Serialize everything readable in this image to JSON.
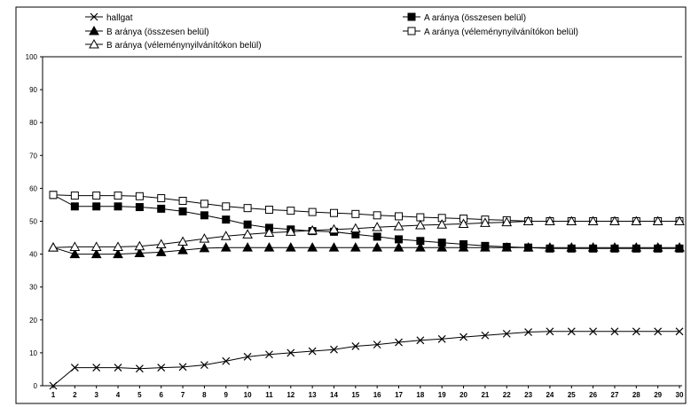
{
  "chart_data": {
    "type": "line",
    "title": "",
    "xlabel": "",
    "ylabel": "",
    "x": [
      1,
      2,
      3,
      4,
      5,
      6,
      7,
      8,
      9,
      10,
      11,
      12,
      13,
      14,
      15,
      16,
      17,
      18,
      19,
      20,
      21,
      22,
      23,
      24,
      25,
      26,
      27,
      28,
      29,
      30
    ],
    "ylim": [
      0,
      100
    ],
    "yticks": [
      0,
      10,
      20,
      30,
      40,
      50,
      60,
      70,
      80,
      90,
      100
    ],
    "grid": false,
    "legend_position": "top",
    "series": [
      {
        "name": "hallgat",
        "marker": "x",
        "values": [
          0,
          5.5,
          5.5,
          5.5,
          5.2,
          5.5,
          5.7,
          6.3,
          7.5,
          8.8,
          9.5,
          10.0,
          10.5,
          11.0,
          12.0,
          12.5,
          13.2,
          13.8,
          14.2,
          14.8,
          15.3,
          15.8,
          16.3,
          16.5,
          16.5,
          16.5,
          16.5,
          16.5,
          16.5,
          16.5
        ]
      },
      {
        "name": "A aránya (összesen belül)",
        "marker": "filled-square",
        "values": [
          58,
          54.5,
          54.5,
          54.5,
          54.3,
          53.8,
          53.0,
          51.8,
          50.5,
          49.0,
          48.0,
          47.5,
          47.0,
          46.8,
          46.0,
          45.3,
          44.5,
          44.0,
          43.5,
          43.0,
          42.5,
          42.2,
          42.0,
          41.7,
          41.7,
          41.7,
          41.7,
          41.7,
          41.7,
          41.7
        ]
      },
      {
        "name": "B aránya (összesen belül)",
        "marker": "filled-triangle",
        "values": [
          42,
          40,
          40,
          40,
          40.3,
          40.6,
          41.2,
          41.8,
          42,
          42,
          42,
          42,
          42,
          42,
          42,
          42,
          42,
          42,
          42,
          42,
          42,
          42,
          42,
          42,
          42,
          42,
          42,
          42,
          42,
          42
        ]
      },
      {
        "name": "A aránya (véleménynyilvánítókon belül)",
        "marker": "open-square",
        "values": [
          58,
          57.8,
          57.8,
          57.8,
          57.6,
          57.0,
          56.2,
          55.3,
          54.5,
          54.0,
          53.5,
          53.2,
          52.8,
          52.5,
          52.2,
          51.8,
          51.5,
          51.2,
          51.0,
          50.8,
          50.5,
          50.3,
          50.0,
          50.0,
          50.0,
          50.0,
          50.0,
          50.0,
          50.0,
          50.0
        ]
      },
      {
        "name": "B aránya (véleménynyilvánítókon belül)",
        "marker": "open-triangle",
        "values": [
          42,
          42.2,
          42.2,
          42.2,
          42.4,
          43.0,
          43.8,
          44.7,
          45.5,
          46.0,
          46.5,
          46.8,
          47.2,
          47.5,
          47.8,
          48.2,
          48.5,
          48.8,
          49.0,
          49.2,
          49.5,
          49.7,
          50.0,
          50.0,
          50.0,
          50.0,
          50.0,
          50.0,
          50.0,
          50.0
        ]
      }
    ]
  }
}
